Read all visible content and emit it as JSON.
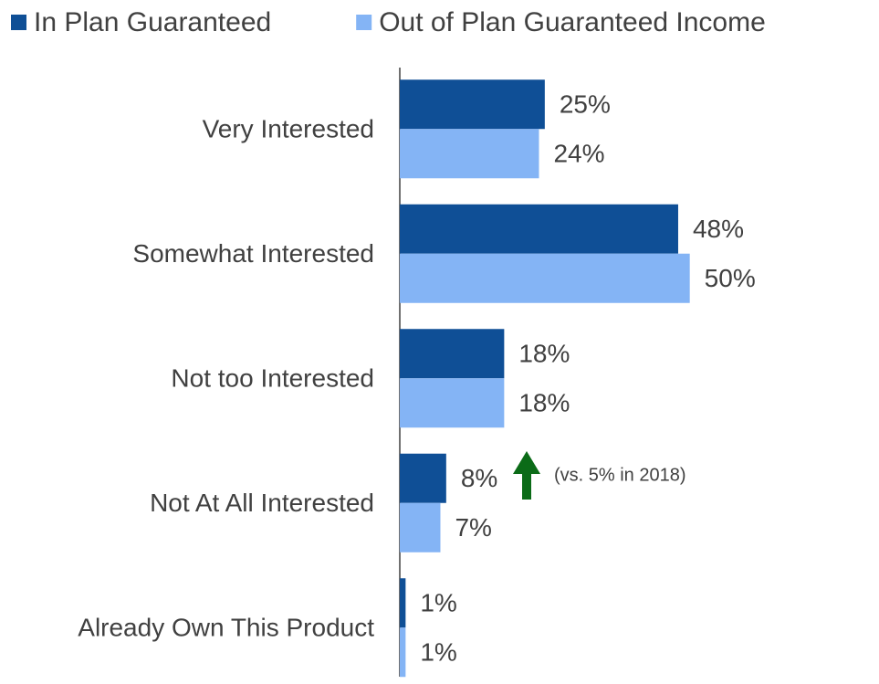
{
  "chart_data": {
    "type": "hbar",
    "categories": [
      "Very Interested",
      "Somewhat Interested",
      "Not too Interested",
      "Not At All Interested",
      "Already Own This Product"
    ],
    "series": [
      {
        "name": "In Plan Guaranteed",
        "color": "#0f4f96",
        "values": [
          25,
          48,
          18,
          8,
          1
        ],
        "value_labels": [
          "25%",
          "48%",
          "18%",
          "8%",
          "1%"
        ]
      },
      {
        "name": "Out of Plan Guaranteed Income",
        "color": "#84b4f5",
        "values": [
          24,
          50,
          18,
          7,
          1
        ],
        "value_labels": [
          "24%",
          "50%",
          "18%",
          "7%",
          "1%"
        ]
      }
    ],
    "xlim": [
      0,
      82
    ],
    "annotation": "(vs. 5% in 2018)",
    "legend": "top"
  }
}
